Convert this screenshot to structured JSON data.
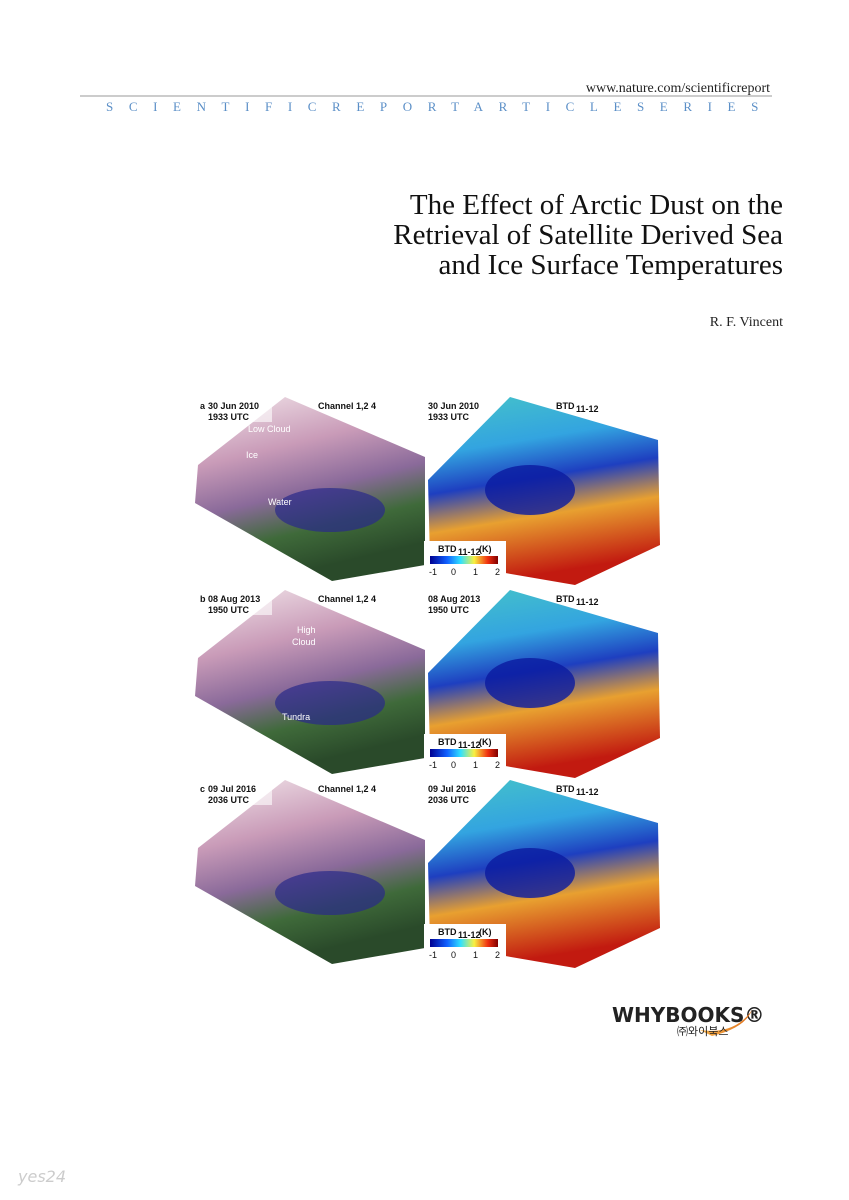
{
  "header": {
    "url": "www.nature.com/scientificreport",
    "series": "SCIENTIFICREPORTARTICLESERIES"
  },
  "title": [
    "The Effect of Arctic Dust on the",
    "Retrieval of Satellite Derived Sea",
    "and Ice Surface Temperatures"
  ],
  "author": "R. F. Vincent",
  "figure": {
    "left_label": "Channel 1,2 4",
    "btd": "BTD",
    "btd_sub": "11-12",
    "unit": "(K)",
    "colorbar_ticks": [
      "-1",
      "0",
      "1",
      "2"
    ],
    "panels": [
      {
        "letter": "a",
        "date": "30 Jun 2010",
        "time": "1933 UTC",
        "annotations": [
          "Low Cloud",
          "Ice",
          "Water"
        ]
      },
      {
        "letter": "b",
        "date": "08 Aug 2013",
        "time": "1950 UTC",
        "annotations": [
          "High",
          "Cloud",
          "Tundra"
        ]
      },
      {
        "letter": "c",
        "date": "09 Jul 2016",
        "time": "2036 UTC",
        "annotations": []
      }
    ]
  },
  "publisher": {
    "logo": "WHYBOOKS®",
    "korean": "㈜와이북스"
  },
  "watermark": "yes24"
}
